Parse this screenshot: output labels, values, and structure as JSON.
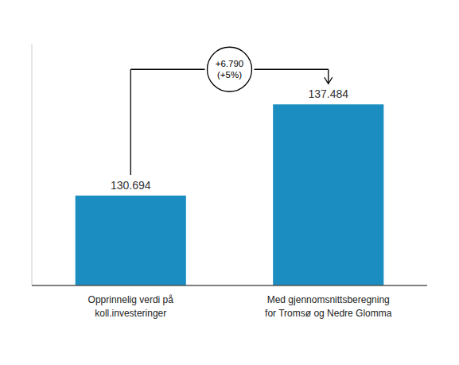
{
  "chart_data": {
    "type": "bar",
    "categories": [
      "Opprinnelig verdi på\nkoll.investeringer",
      "Med gjennomsnittsberegning\nfor Tromsø og Nedre Glomma"
    ],
    "values": [
      130.694,
      137.484
    ],
    "color": "#1b8dc0",
    "ylim": [
      124.0,
      142.0
    ],
    "data_labels": true,
    "tick_labels": false,
    "annotations": [
      "+6.790\n(+5%)"
    ]
  }
}
